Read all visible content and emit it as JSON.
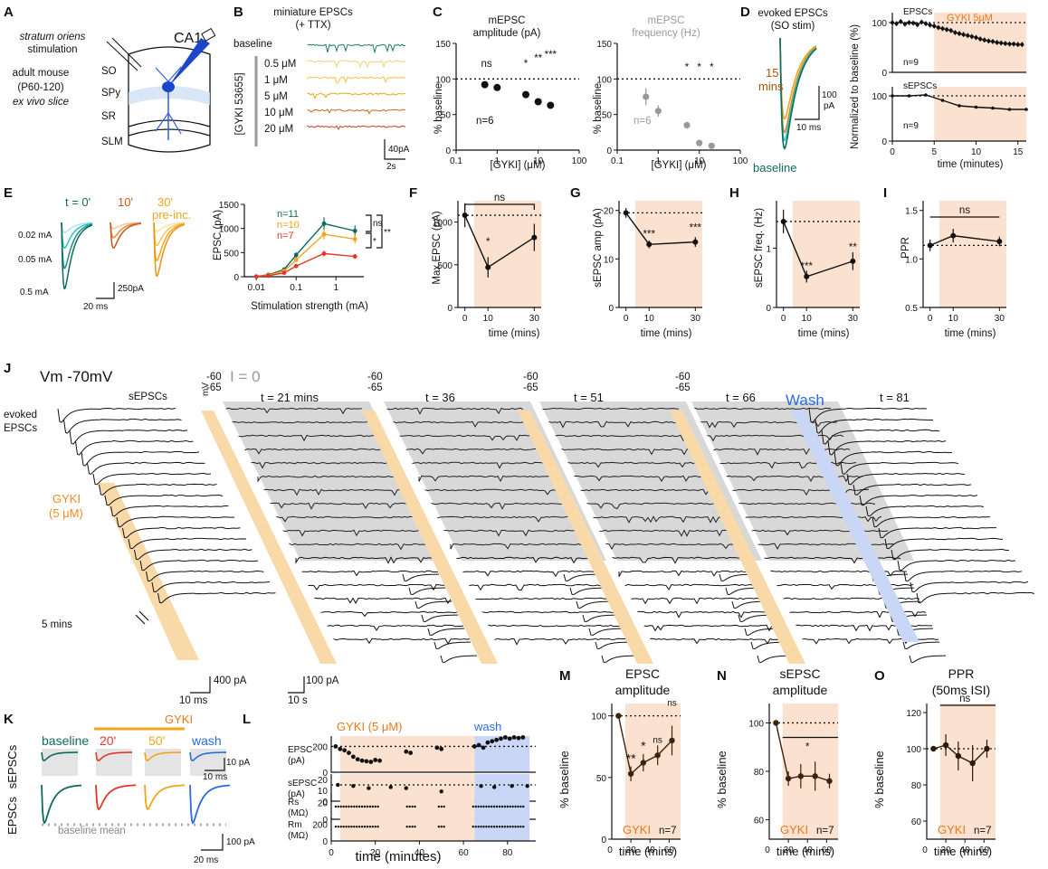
{
  "colors": {
    "teal": "#0f6b5e",
    "cyan": "#2ec4c4",
    "orange": "#e8791a",
    "gold": "#f2a51d",
    "red": "#e5352b",
    "brown": "#7a3e10",
    "gray": "#9a9a9a",
    "shade": "#fbe1cf",
    "wash": "#c9d6f5",
    "blue": "#2d6ae0",
    "gradient": "#f9d9a8"
  },
  "panelA": {
    "label": "A",
    "region": "CA1",
    "stim": [
      "stratum oriens",
      "stimulation"
    ],
    "layers": [
      "SO",
      "SPy",
      "SR",
      "SLM"
    ],
    "prep": [
      "adult mouse",
      "(P60-120)",
      "ex vivo slice"
    ]
  },
  "panelB": {
    "label": "B",
    "title": [
      "miniature EPSCs",
      "(+ TTX)"
    ],
    "baseline": "baseline",
    "drug": "[GYKI 53655]",
    "concs": [
      "0.5 μM",
      "1 μM",
      "5 μM",
      "10 μM",
      "20 μM"
    ],
    "scale_y": "40pA",
    "scale_x": "2s"
  },
  "panelC": {
    "label": "C",
    "amp": {
      "title": [
        "mEPSC",
        "amplitude (pA)"
      ],
      "ylabel": "% baseline",
      "xlabel": "[GYKI] (μM)",
      "n": "n=6",
      "xticks": [
        "0.1",
        "1",
        "10",
        "100"
      ],
      "yticks": [
        "0",
        "50",
        "100",
        "150"
      ],
      "sig": [
        "ns",
        "*",
        "**",
        "***"
      ]
    },
    "freq": {
      "title": [
        "mEPSC",
        "frequency (Hz)"
      ],
      "ylabel": "% baseline",
      "xlabel": "[GYKI] (μM)",
      "n": "n=6",
      "xticks": [
        "0.1",
        "1",
        "10",
        "100"
      ],
      "yticks": [
        "0",
        "50",
        "100",
        "150"
      ],
      "sig": [
        "*",
        "*",
        "*"
      ]
    }
  },
  "panelD": {
    "label": "D",
    "title": [
      "evoked EPSCs",
      "(SO stim)"
    ],
    "t15": [
      "15",
      "mins"
    ],
    "baseline": "baseline",
    "scale_y": [
      "100",
      "pA"
    ],
    "scale_x": "10 ms",
    "ylabel": "Normalized to baseline (%)",
    "xlabel": "time (minutes)",
    "top": {
      "title": "EPSCs",
      "drug": "GYKI 5μM",
      "n": "n=9"
    },
    "bottom": {
      "title": "sEPSCs",
      "n": "n=9"
    },
    "yticks": [
      "0",
      "100"
    ],
    "xticks": [
      "0",
      "5",
      "10",
      "15"
    ]
  },
  "panelE": {
    "label": "E",
    "times": [
      "t = 0'",
      "10'",
      "30'"
    ],
    "preinc": "pre-inc.",
    "currents": [
      "0.02 mA",
      "0.05 mA",
      "0.5 mA"
    ],
    "scale_y": "250pA",
    "scale_x": "20 ms",
    "ylabel": "EPSC (pA)",
    "xlabel": "Stimulation strength (mA)",
    "ns": [
      "n=11",
      "n=10",
      "n=7"
    ],
    "sig": [
      "ns",
      "*",
      "**"
    ],
    "yticks": [
      "0",
      "500",
      "1000",
      "1500"
    ],
    "xticks": [
      "0.01",
      "0.1",
      "1"
    ]
  },
  "panelF": {
    "label": "F",
    "ylabel": "Max EPSC (pA)",
    "xlabel": "time (mins)",
    "yticks": [
      "0",
      "500",
      "1000"
    ],
    "xticks": [
      "0",
      "10",
      "30"
    ],
    "sig": [
      "ns",
      "*"
    ]
  },
  "panelG": {
    "label": "G",
    "ylabel": "sEPSC amp (pA)",
    "xlabel": "time (mins)",
    "yticks": [
      "0",
      "10",
      "20"
    ],
    "xticks": [
      "0",
      "10",
      "30"
    ],
    "sig": [
      "***",
      "***"
    ]
  },
  "panelH": {
    "label": "H",
    "ylabel": "sEPSC freq. (Hz)",
    "xlabel": "time (mins)",
    "yticks": [
      "0",
      "1"
    ],
    "xticks": [
      "0",
      "10",
      "30"
    ],
    "sig": [
      "***",
      "**"
    ]
  },
  "panelI": {
    "label": "I",
    "ylabel": "PPR",
    "xlabel": "time (mins)",
    "yticks": [
      "0.5",
      "1.0",
      "1.5"
    ],
    "xticks": [
      "0",
      "10",
      "30"
    ],
    "sig": [
      "ns"
    ]
  },
  "panelJ": {
    "label": "J",
    "vm": "Vm -70mV",
    "i0": "I = 0",
    "evoked": [
      "evoked",
      "EPSCs"
    ],
    "spont": "sEPSCs",
    "mv": "mV",
    "gyki": [
      "GYKI",
      "(5 μM)"
    ],
    "five": "5 mins",
    "times": [
      "t = 21 mins",
      "t = 36",
      "t = 51",
      "t = 66",
      "t = 81"
    ],
    "wash": "Wash",
    "v1": "-60",
    "v2": "-65",
    "sb1": [
      "400 pA",
      "10 ms"
    ],
    "sb2": [
      "100 pA",
      "10 s"
    ]
  },
  "panelK": {
    "label": "K",
    "drug": "GYKI",
    "conds": [
      "baseline",
      "20'",
      "50'",
      "wash"
    ],
    "rows": [
      "sEPSCs",
      "EPSCs"
    ],
    "sb1": [
      "10 pA",
      "10 ms"
    ],
    "sb2": [
      "100 pA",
      "20 ms"
    ],
    "mean": "baseline mean"
  },
  "panelL": {
    "label": "L",
    "drug": "GYKI (5 μM)",
    "wash": "wash",
    "xlabel": "time (minutes)",
    "rows": [
      {
        "y": "EPSC",
        "unit": "(pA)",
        "ticks": [
          "200",
          "0"
        ]
      },
      {
        "y": "sEPSC",
        "unit": "(pA)",
        "ticks": [
          "20",
          "10",
          "0"
        ]
      },
      {
        "y": "Rs",
        "unit": "(MΩ)",
        "ticks": [
          "20",
          "0"
        ]
      },
      {
        "y": "Rm",
        "unit": "(MΩ)",
        "ticks": [
          "200",
          "0"
        ]
      }
    ],
    "xticks": [
      "0",
      "20",
      "40",
      "60",
      "80"
    ]
  },
  "panelM": {
    "label": "M",
    "title": [
      "EPSC",
      "amplitude"
    ],
    "ylabel": "% baseline",
    "xlabel": "time (mins)",
    "drug": "GYKI",
    "n": "n=7",
    "yticks": [
      "0",
      "50",
      "100"
    ],
    "xticks": [
      "0",
      "20",
      "40",
      "60"
    ],
    "sig": [
      "**",
      "*",
      "ns",
      "ns"
    ]
  },
  "panelN": {
    "label": "N",
    "title": [
      "sEPSC",
      "amplitude"
    ],
    "ylabel": "% baseline",
    "xlabel": "time (mins)",
    "drug": "GYKI",
    "n": "n=7",
    "yticks": [
      "60",
      "80",
      "100"
    ],
    "xticks": [
      "0",
      "20",
      "40",
      "60"
    ],
    "sig": [
      "*"
    ]
  },
  "panelO": {
    "label": "O",
    "title": [
      "PPR",
      "(50ms ISI)"
    ],
    "ylabel": "% baseline",
    "xlabel": "time (mins)",
    "drug": "GYKI",
    "n": "n=7",
    "yticks": [
      "60",
      "80",
      "100",
      "120"
    ],
    "xticks": [
      "0",
      "20",
      "40",
      "60"
    ],
    "sig": [
      "ns"
    ]
  },
  "chart_data": [
    {
      "type": "scatter",
      "panel": "C-amplitude",
      "xscale": "log",
      "xlim": [
        0.1,
        100
      ],
      "ylim": [
        0,
        150
      ],
      "x": [
        0.5,
        1,
        5,
        10,
        20
      ],
      "y": [
        92,
        88,
        78,
        68,
        63
      ],
      "reference": 100
    },
    {
      "type": "scatter",
      "panel": "C-frequency",
      "xscale": "log",
      "xlim": [
        0.1,
        100
      ],
      "ylim": [
        0,
        150
      ],
      "x": [
        0.5,
        1,
        5,
        10,
        20
      ],
      "y": [
        75,
        55,
        35,
        10,
        6
      ],
      "err": [
        12,
        8,
        5,
        3,
        2
      ],
      "reference": 100
    },
    {
      "type": "line",
      "panel": "D-EPSCs",
      "xlim": [
        0,
        16
      ],
      "ylim": [
        0,
        120
      ],
      "x": [
        0,
        0.5,
        1,
        1.5,
        2,
        2.5,
        3,
        3.5,
        4,
        4.5,
        5,
        5.5,
        6,
        6.5,
        7,
        7.5,
        8,
        8.5,
        9,
        9.5,
        10,
        10.5,
        11,
        11.5,
        12,
        12.5,
        13,
        13.5,
        14,
        14.5,
        15,
        15.5
      ],
      "y": [
        100,
        98,
        102,
        97,
        100,
        99,
        96,
        101,
        98,
        95,
        93,
        90,
        88,
        86,
        84,
        80,
        78,
        76,
        74,
        72,
        70,
        67,
        65,
        63,
        62,
        60,
        59,
        58,
        57,
        57,
        56,
        56
      ],
      "reference": 100
    },
    {
      "type": "line",
      "panel": "D-sEPSCs",
      "xlim": [
        0,
        16
      ],
      "ylim": [
        0,
        120
      ],
      "x": [
        0,
        2,
        4,
        6,
        8,
        10,
        12,
        14,
        16
      ],
      "y": [
        100,
        100,
        102,
        90,
        78,
        75,
        73,
        70,
        70
      ],
      "reference": 100
    },
    {
      "type": "line",
      "panel": "E",
      "xscale": "log",
      "xlim": [
        0.005,
        5
      ],
      "ylim": [
        0,
        1500
      ],
      "x": [
        0.01,
        0.02,
        0.05,
        0.1,
        0.5,
        3
      ],
      "series": [
        {
          "name": "n=11",
          "values": [
            5,
            40,
            150,
            450,
            1100,
            950
          ]
        },
        {
          "name": "n=10",
          "values": [
            4,
            30,
            120,
            350,
            880,
            780
          ]
        },
        {
          "name": "n=7",
          "values": [
            3,
            20,
            80,
            220,
            480,
            420
          ]
        }
      ]
    },
    {
      "type": "line",
      "panel": "F",
      "x": [
        0,
        10,
        30
      ],
      "y": [
        1080,
        470,
        820
      ],
      "err": [
        140,
        120,
        160
      ],
      "ylim": [
        0,
        1250
      ],
      "reference": 1080
    },
    {
      "type": "line",
      "panel": "G",
      "x": [
        0,
        10,
        30
      ],
      "y": [
        19.5,
        13,
        13.5
      ],
      "err": [
        1,
        0.8,
        1
      ],
      "ylim": [
        0,
        22
      ],
      "reference": 19.5
    },
    {
      "type": "line",
      "panel": "H",
      "x": [
        0,
        10,
        30
      ],
      "y": [
        1.45,
        0.52,
        0.78
      ],
      "err": [
        0.2,
        0.1,
        0.15
      ],
      "ylim": [
        0,
        1.8
      ],
      "reference": 1.45
    },
    {
      "type": "line",
      "panel": "I",
      "x": [
        0,
        10,
        30
      ],
      "y": [
        1.14,
        1.24,
        1.18
      ],
      "err": [
        0.06,
        0.07,
        0.05
      ],
      "ylim": [
        0.5,
        1.6
      ],
      "reference": 1.14
    },
    {
      "type": "scatter",
      "panel": "L-EPSC",
      "ylim": [
        0,
        280
      ],
      "reference": 200,
      "x": [
        2,
        4,
        6,
        8,
        10,
        12,
        14,
        16,
        18,
        20,
        22,
        34,
        36,
        48,
        50,
        65,
        67,
        69,
        71,
        73,
        75,
        77,
        79,
        81,
        83,
        85,
        87
      ],
      "y": [
        200,
        180,
        170,
        150,
        120,
        100,
        90,
        85,
        80,
        95,
        90,
        160,
        150,
        190,
        180,
        200,
        210,
        190,
        230,
        240,
        250,
        260,
        270,
        260,
        270,
        265,
        270
      ]
    },
    {
      "type": "scatter",
      "panel": "L-sEPSC",
      "ylim": [
        0,
        25
      ],
      "reference": 15,
      "x": [
        3,
        10,
        17,
        27,
        34,
        50,
        68,
        74,
        82,
        89
      ],
      "y": [
        15,
        14,
        12,
        13,
        12,
        9,
        14,
        13,
        14,
        14
      ]
    },
    {
      "type": "line",
      "panel": "M",
      "x": [
        7,
        20,
        33,
        48,
        63
      ],
      "y": [
        100,
        53,
        62,
        68,
        80
      ],
      "err": [
        0,
        6,
        7,
        8,
        12
      ],
      "ylim": [
        0,
        110
      ],
      "reference": 100
    },
    {
      "type": "line",
      "panel": "N",
      "x": [
        7,
        20,
        33,
        48,
        63
      ],
      "y": [
        100,
        77,
        78,
        78,
        76
      ],
      "err": [
        0,
        3,
        5,
        6,
        3
      ],
      "ylim": [
        50,
        110
      ],
      "reference": 100
    },
    {
      "type": "line",
      "panel": "O",
      "x": [
        7,
        20,
        33,
        48,
        63
      ],
      "y": [
        100,
        102,
        96,
        92,
        100
      ],
      "err": [
        0,
        6,
        8,
        10,
        5
      ],
      "ylim": [
        50,
        125
      ],
      "reference": 100
    }
  ]
}
